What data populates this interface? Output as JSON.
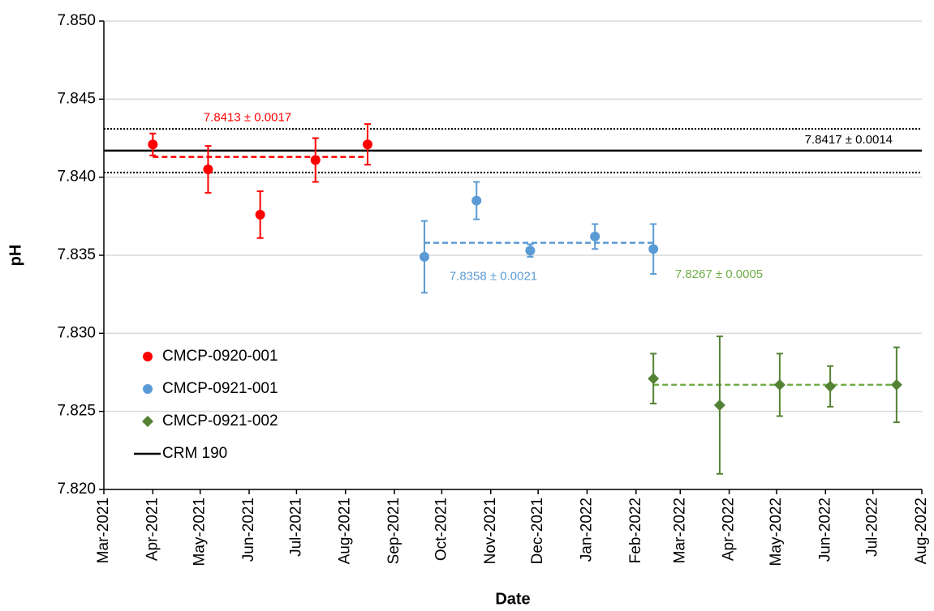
{
  "chart_data": {
    "type": "scatter",
    "x_label": "Date",
    "y_label": "pH",
    "xlim": [
      "2021-03-01",
      "2022-08-01"
    ],
    "xticks": [
      {
        "value": "2021-03-01",
        "label": "Mar-2021"
      },
      {
        "value": "2021-04-01",
        "label": "Apr-2021"
      },
      {
        "value": "2021-05-01",
        "label": "May-2021"
      },
      {
        "value": "2021-06-01",
        "label": "Jun-2021"
      },
      {
        "value": "2021-07-01",
        "label": "Jul-2021"
      },
      {
        "value": "2021-08-01",
        "label": "Aug-2021"
      },
      {
        "value": "2021-09-01",
        "label": "Sep-2021"
      },
      {
        "value": "2021-10-01",
        "label": "Oct-2021"
      },
      {
        "value": "2021-11-01",
        "label": "Nov-2021"
      },
      {
        "value": "2021-12-01",
        "label": "Dec-2021"
      },
      {
        "value": "2022-01-01",
        "label": "Jan-2022"
      },
      {
        "value": "2022-02-01",
        "label": "Feb-2022"
      },
      {
        "value": "2022-03-01",
        "label": "Mar-2022"
      },
      {
        "value": "2022-04-01",
        "label": "Apr-2022"
      },
      {
        "value": "2022-05-01",
        "label": "May-2022"
      },
      {
        "value": "2022-06-01",
        "label": "Jun-2022"
      },
      {
        "value": "2022-07-01",
        "label": "Jul-2022"
      },
      {
        "value": "2022-08-01",
        "label": "Aug-2022"
      }
    ],
    "ylim": [
      7.82,
      7.85
    ],
    "yticks": [
      {
        "value": 7.82,
        "label": "7.820"
      },
      7.825,
      {
        "value": 7.83,
        "label": "7.830"
      },
      7.835,
      {
        "value": 7.84,
        "label": "7.840"
      },
      7.845,
      {
        "value": 7.85,
        "label": "7.850"
      }
    ],
    "grid": true,
    "legend": "lower left",
    "series": [
      {
        "name": "CMCP-0920-001",
        "color": "#ff0000",
        "marker": "circle",
        "x": [
          "2021-04-01",
          "2021-05-06",
          "2021-06-08",
          "2021-07-13",
          "2021-08-15"
        ],
        "values": [
          7.8421,
          7.8405,
          7.8376,
          7.8411,
          7.8421
        ],
        "errors": [
          0.0007,
          0.0015,
          0.0015,
          0.0014,
          0.0013
        ],
        "mean": 7.8413,
        "mean_label": "7.8413 ± 0.0017"
      },
      {
        "name": "CMCP-0921-001",
        "color": "#5b9bd5",
        "marker": "circle",
        "x": [
          "2021-09-20",
          "2021-10-23",
          "2021-11-26",
          "2022-01-06",
          "2022-02-12"
        ],
        "values": [
          7.8349,
          7.8385,
          7.8353,
          7.8362,
          7.8354
        ],
        "errors": [
          0.0023,
          0.0012,
          0.0004,
          0.0008,
          0.0016
        ],
        "mean": 7.8358,
        "mean_label": "7.8358 ± 0.0021"
      },
      {
        "name": "CMCP-0921-002",
        "color": "#548235",
        "mean_color": "#70ad47",
        "marker": "diamond",
        "x": [
          "2022-02-12",
          "2022-03-26",
          "2022-05-03",
          "2022-06-04",
          "2022-07-16"
        ],
        "values": [
          7.8271,
          7.8254,
          7.8267,
          7.8266,
          7.8267
        ],
        "errors": [
          0.0016,
          0.0044,
          0.002,
          0.0013,
          0.0024
        ],
        "mean": 7.8267,
        "mean_label": "7.8267 ± 0.0005"
      }
    ],
    "reference": {
      "name": "CRM 190",
      "color": "#000000",
      "value": 7.8417,
      "uncertainty": 0.0014,
      "label": "7.8417 ± 0.0014"
    }
  }
}
